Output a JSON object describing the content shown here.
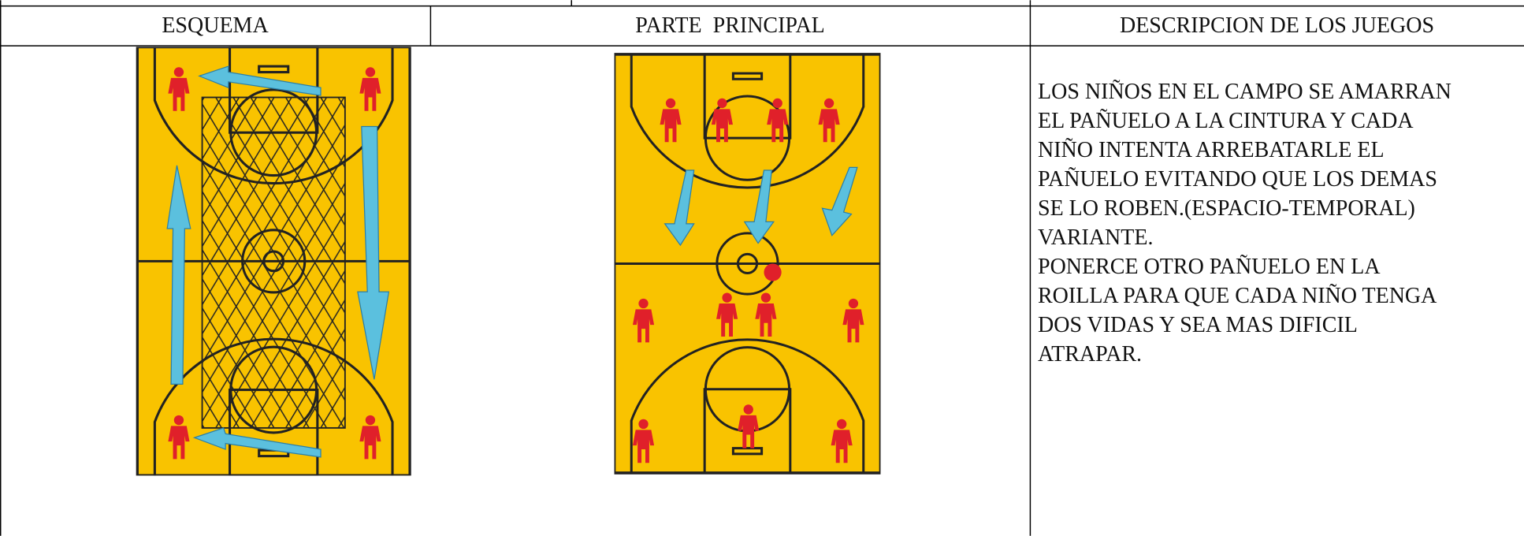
{
  "table": {
    "header": [
      "ESQUEMA",
      "PARTE  PRINCIPAL",
      "DESCRIPCION DE LOS JUEGOS"
    ],
    "description": [
      "LOS NIÑOS EN EL CAMPO SE AMARRAN",
      "EL PAÑUELO A LA CINTURA Y CADA",
      "NIÑO INTENTA ARREBATARLE EL",
      "PAÑUELO EVITANDO QUE LOS DEMAS",
      "SE LO ROBEN.(ESPACIO-TEMPORAL)",
      "VARIANTE.",
      "PONERCE OTRO PAÑUELO EN LA",
      "ROILLA PARA QUE CADA NIÑO TENGA",
      "DOS VIDAS Y SEA MAS DIFICIL",
      "ATRAPAR."
    ]
  }
}
